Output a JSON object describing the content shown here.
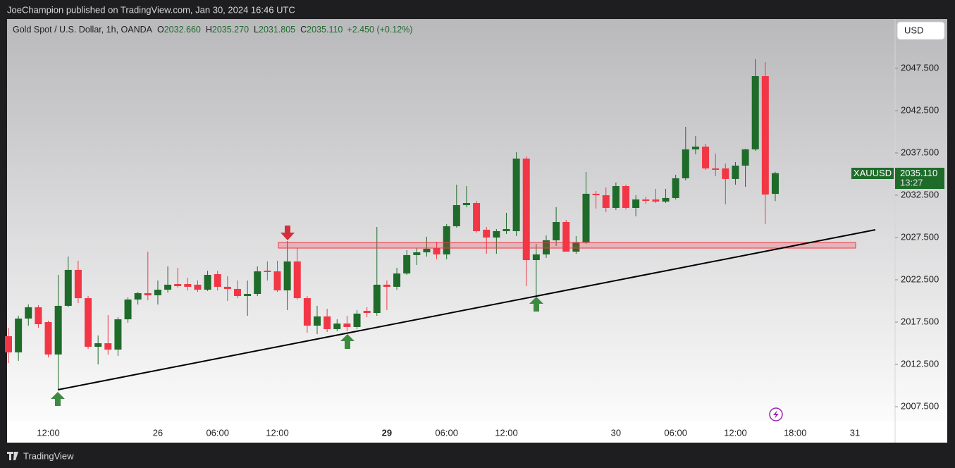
{
  "top_bar": {
    "text": "JoeChampion published on TradingView.com, Jan 30, 2024 16:46 UTC"
  },
  "header": {
    "symbol": "Gold Spot / U.S. Dollar, 1h, OANDA",
    "o_label": "O",
    "o": "2032.660",
    "h_label": "H",
    "h": "2035.270",
    "l_label": "L",
    "l": "2031.805",
    "c_label": "C",
    "c": "2035.110",
    "change": "+2.450 (+0.12%)"
  },
  "currency_button": "USD",
  "price_tag": {
    "symbol": "XAUUSD",
    "price": "2035.110",
    "countdown": "13:27"
  },
  "footer": {
    "brand": "TradingView"
  },
  "chart_data": {
    "type": "candlestick",
    "up_color": "#1e6b2a",
    "down_color": "#f23645",
    "categories": [
      null,
      null,
      null,
      null,
      "12:00",
      null,
      null,
      null,
      null,
      null,
      null,
      null,
      null,
      null,
      null,
      "26",
      null,
      null,
      null,
      null,
      null,
      "06:00",
      null,
      null,
      null,
      null,
      null,
      "12:00",
      null,
      null,
      null,
      null,
      null,
      null,
      null,
      null,
      null,
      null,
      "29",
      null,
      null,
      null,
      null,
      null,
      "06:00",
      null,
      null,
      null,
      null,
      null,
      "12:00",
      null,
      null,
      null,
      null,
      null,
      null,
      null,
      null,
      null,
      null,
      "30",
      null,
      null,
      null,
      null,
      null,
      "06:00",
      null,
      null,
      null,
      null,
      null,
      "12:00",
      null,
      null,
      null,
      null,
      null,
      "18:00",
      null,
      null,
      null,
      null,
      null,
      "31"
    ],
    "open": [
      2015.83,
      2013.92,
      2017.92,
      2019.25,
      2017.5,
      2013.67,
      2019.42,
      2023.67,
      2020.33,
      2014.58,
      2015.0,
      2014.25,
      2017.83,
      2020.17,
      2020.92,
      2020.67,
      2021.33,
      2022.0,
      2022.0,
      2021.92,
      2021.33,
      2023.17,
      2021.67,
      2021.42,
      2020.58,
      2020.83,
      2023.58,
      2023.5,
      2021.25,
      2024.67,
      2020.33,
      2017.08,
      2018.17,
      2016.67,
      2017.33,
      2016.92,
      2018.83,
      2018.58,
      2021.92,
      2021.67,
      2023.25,
      2025.42,
      2025.75,
      2026.25,
      2025.5,
      2028.83,
      2031.33,
      2031.58,
      2028.42,
      2027.5,
      2028.25,
      2028.25,
      2036.83,
      2024.83,
      2025.5,
      2027.17,
      2029.33,
      2025.83,
      2026.92,
      2032.67,
      2032.5,
      2031.0,
      2033.58,
      2031.0,
      2032.0,
      2032.0,
      2031.75,
      2032.17,
      2034.5,
      2037.92,
      2038.25,
      2035.67,
      2035.67,
      2034.42,
      2036.0,
      2037.92,
      2046.58,
      2032.66,
      null,
      null,
      null,
      null,
      null,
      null,
      null,
      null
    ],
    "high": [
      2016.83,
      2018.25,
      2019.58,
      2019.5,
      2017.67,
      2023.08,
      2025.25,
      2024.75,
      2020.58,
      2015.92,
      2018.33,
      2018.08,
      2020.42,
      2021.08,
      2025.83,
      2022.42,
      2024.08,
      2023.92,
      2022.75,
      2022.42,
      2023.58,
      2023.58,
      2022.92,
      2022.42,
      2022.42,
      2024.08,
      2024.67,
      2024.75,
      2027.08,
      2026.25,
      2020.58,
      2019.42,
      2019.08,
      2017.83,
      2018.25,
      2018.92,
      2019.25,
      2028.75,
      2022.42,
      2023.92,
      2026.0,
      2026.25,
      2027.58,
      2027.0,
      2029.08,
      2033.75,
      2033.58,
      2031.83,
      2028.75,
      2028.5,
      2030.42,
      2037.58,
      2037.08,
      2026.75,
      2027.75,
      2031.08,
      2029.58,
      2027.67,
      2035.25,
      2033.0,
      2033.42,
      2034.0,
      2033.75,
      2032.5,
      2032.33,
      2033.25,
      2033.25,
      2034.92,
      2040.58,
      2039.5,
      2038.58,
      2037.42,
      2036.25,
      2036.42,
      2038.0,
      2048.58,
      2048.25,
      2035.27,
      null,
      null,
      null,
      null,
      null,
      null,
      null,
      null
    ],
    "low": [
      2012.67,
      2012.92,
      2017.08,
      2016.83,
      2013.33,
      2009.5,
      2019.25,
      2019.75,
      2014.33,
      2012.5,
      2013.67,
      2013.5,
      2017.42,
      2019.58,
      2020.08,
      2019.58,
      2021.0,
      2021.58,
      2021.25,
      2021.08,
      2021.17,
      2021.25,
      2020.0,
      2020.33,
      2018.25,
      2020.58,
      2022.42,
      2021.08,
      2018.92,
      2020.17,
      2016.25,
      2016.08,
      2016.33,
      2016.42,
      2016.42,
      2016.67,
      2018.08,
      2018.25,
      2018.92,
      2021.33,
      2023.08,
      2024.25,
      2025.25,
      2024.92,
      2024.92,
      2028.67,
      2031.08,
      2028.08,
      2025.58,
      2025.58,
      2027.92,
      2027.67,
      2021.75,
      2020.58,
      2025.08,
      2026.5,
      2025.83,
      2025.58,
      2026.75,
      2030.92,
      2030.5,
      2030.75,
      2030.83,
      2030.0,
      2031.5,
      2031.58,
      2031.58,
      2032.0,
      2034.25,
      2037.33,
      2035.5,
      2034.75,
      2031.42,
      2033.75,
      2033.5,
      2037.75,
      2029.08,
      2031.805,
      null,
      null,
      null,
      null,
      null,
      null,
      null,
      null
    ],
    "close": [
      2013.92,
      2017.92,
      2019.25,
      2017.25,
      2013.67,
      2019.42,
      2023.67,
      2020.33,
      2014.58,
      2015.0,
      2014.25,
      2017.83,
      2020.17,
      2020.92,
      2020.67,
      2021.33,
      2021.92,
      2021.75,
      2021.67,
      2021.33,
      2023.08,
      2021.67,
      2021.42,
      2020.58,
      2020.83,
      2023.5,
      2023.42,
      2021.25,
      2024.67,
      2020.33,
      2017.08,
      2018.17,
      2016.67,
      2017.33,
      2016.92,
      2018.5,
      2018.58,
      2021.92,
      2021.67,
      2023.25,
      2025.42,
      2025.75,
      2026.17,
      2025.5,
      2028.83,
      2031.33,
      2031.58,
      2028.25,
      2027.5,
      2028.25,
      2028.5,
      2036.83,
      2024.83,
      2025.5,
      2027.17,
      2029.33,
      2025.83,
      2026.92,
      2032.67,
      2032.5,
      2031.0,
      2033.58,
      2031.0,
      2032.0,
      2031.83,
      2031.75,
      2032.17,
      2034.5,
      2037.92,
      2038.25,
      2035.67,
      2035.5,
      2034.42,
      2036.0,
      2037.92,
      2046.58,
      2032.58,
      2035.11,
      null,
      null,
      null,
      null,
      null,
      null,
      null,
      null
    ],
    "ylim": [
      2005.75,
      2053.33
    ],
    "yticks": [
      {
        "value": 2007.5,
        "label": "2007.500"
      },
      {
        "value": 2012.5,
        "label": "2012.500"
      },
      {
        "value": 2017.5,
        "label": "2017.500"
      },
      {
        "value": 2022.5,
        "label": "2022.500"
      },
      {
        "value": 2027.5,
        "label": "2027.500"
      },
      {
        "value": 2032.5,
        "label": "2032.500"
      },
      {
        "value": 2037.5,
        "label": "2037.500"
      },
      {
        "value": 2042.5,
        "label": "2042.500"
      },
      {
        "value": 2047.5,
        "label": "2047.500"
      }
    ],
    "grid": false
  }
}
